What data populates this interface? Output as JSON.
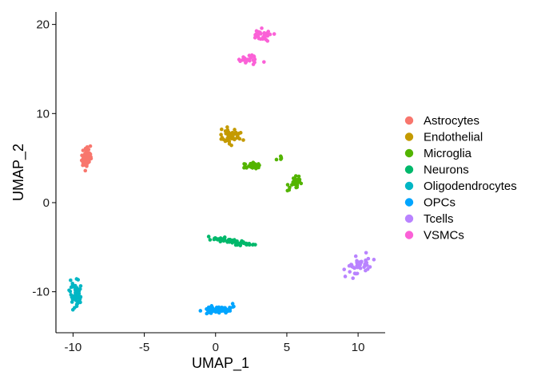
{
  "chart_data": {
    "type": "scatter",
    "title": "",
    "xlabel": "UMAP_1",
    "ylabel": "UMAP_2",
    "xlim": [
      -11.2,
      11.9
    ],
    "ylim": [
      -14.6,
      21.4
    ],
    "xticks": [
      -10,
      -5,
      0,
      5,
      10
    ],
    "yticks": [
      -10,
      0,
      10,
      20
    ],
    "xtick_labels": [
      "-10",
      "-5",
      "0",
      "5",
      "10"
    ],
    "ytick_labels": [
      "-10",
      "0",
      "10",
      "20"
    ],
    "grid": false,
    "legend_position": "right",
    "series": [
      {
        "name": "Astrocytes",
        "color": "#F8766D",
        "clusters": [
          {
            "cx": -9.1,
            "cy": 5.0,
            "sx": 0.18,
            "sy": 0.55,
            "n": 55,
            "tx": -9.2,
            "ty": 3.6,
            "tx2": -8.9,
            "ty2": 6.4
          }
        ]
      },
      {
        "name": "Endothelial",
        "color": "#C49A00",
        "clusters": [
          {
            "cx": 1.0,
            "cy": 7.9,
            "sx": 0.35,
            "sy": 0.45,
            "n": 45,
            "tx": 0.3,
            "ty": 8.2,
            "tx2": 1.6,
            "ty2": 6.0
          }
        ]
      },
      {
        "name": "Microglia",
        "color": "#53B400",
        "clusters": [
          {
            "cx": 2.5,
            "cy": 4.1,
            "sx": 0.35,
            "sy": 0.18,
            "n": 25,
            "tx": 2.0,
            "ty": 4.0,
            "tx2": 3.2,
            "ty2": 4.2
          },
          {
            "cx": 5.7,
            "cy": 2.0,
            "sx": 0.25,
            "sy": 0.35,
            "n": 30,
            "tx": 5.0,
            "ty": 2.4,
            "tx2": 6.2,
            "ty2": 2.9
          },
          {
            "cx": 4.6,
            "cy": 4.8,
            "sx": 0.12,
            "sy": 0.1,
            "n": 5,
            "tx": 4.4,
            "ty": 4.9,
            "tx2": 4.8,
            "ty2": 4.8
          }
        ]
      },
      {
        "name": "Neurons",
        "color": "#00B86B",
        "clusters": [
          {
            "cx": 1.0,
            "cy": -4.2,
            "sx": 0.35,
            "sy": 0.12,
            "n": 50,
            "tx": -1.2,
            "ty": -3.7,
            "tx2": 3.6,
            "ty2": -5.2
          }
        ]
      },
      {
        "name": "Oligodendrocytes",
        "color": "#00B6C4",
        "clusters": [
          {
            "cx": -9.8,
            "cy": -10.4,
            "sx": 0.15,
            "sy": 0.5,
            "n": 55,
            "tx": -10.0,
            "ty": -8.0,
            "tx2": -9.6,
            "ty2": -12.0
          }
        ]
      },
      {
        "name": "OPCs",
        "color": "#00A5FF",
        "clusters": [
          {
            "cx": 0.2,
            "cy": -12.0,
            "sx": 0.5,
            "sy": 0.22,
            "n": 55,
            "tx": -0.9,
            "ty": -12.0,
            "tx2": 1.3,
            "ty2": -12.0
          }
        ]
      },
      {
        "name": "Tcells",
        "color": "#B983FF",
        "clusters": [
          {
            "cx": 10.0,
            "cy": -7.1,
            "sx": 0.35,
            "sy": 0.4,
            "n": 45,
            "tx": 9.3,
            "ty": -8.2,
            "tx2": 10.7,
            "ty2": -6.0
          }
        ]
      },
      {
        "name": "VSMCs",
        "color": "#FB61D7",
        "clusters": [
          {
            "cx": 3.2,
            "cy": 18.8,
            "sx": 0.3,
            "sy": 0.3,
            "n": 30,
            "tx": 2.8,
            "ty": 18.7,
            "tx2": 3.9,
            "ty2": 18.9
          },
          {
            "cx": 2.4,
            "cy": 16.0,
            "sx": 0.35,
            "sy": 0.25,
            "n": 25,
            "tx": 1.8,
            "ty": 15.6,
            "tx2": 3.0,
            "ty2": 16.6
          }
        ]
      }
    ]
  }
}
